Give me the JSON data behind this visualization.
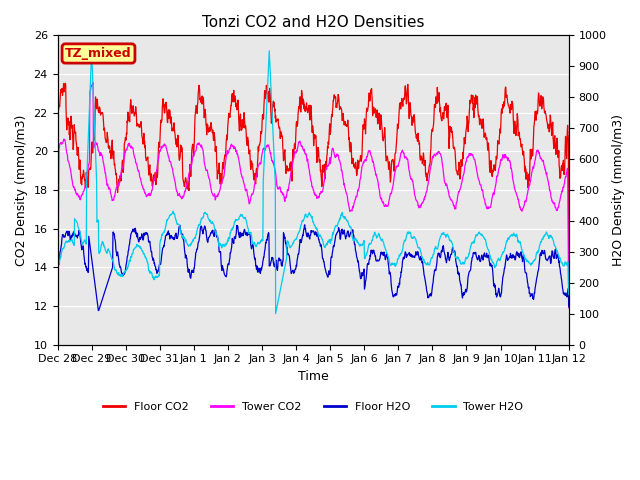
{
  "title": "Tonzi CO2 and H2O Densities",
  "xlabel": "Time",
  "ylabel_left": "CO2 Density (mmol/m3)",
  "ylabel_right": "H2O Density (mmol/m3)",
  "ylim_left": [
    10,
    26
  ],
  "ylim_right": [
    0,
    1000
  ],
  "yticks_left": [
    10,
    12,
    14,
    16,
    18,
    20,
    22,
    24,
    26
  ],
  "yticks_right": [
    0,
    100,
    200,
    300,
    400,
    500,
    600,
    700,
    800,
    900,
    1000
  ],
  "xtick_labels": [
    "Dec 28",
    "Dec 29",
    "Dec 30",
    "Dec 31",
    "Jan 1",
    "Jan 2",
    "Jan 3",
    "Jan 4",
    "Jan 5",
    "Jan 6",
    "Jan 7",
    "Jan 8",
    "Jan 9",
    "Jan 10",
    "Jan 11",
    "Jan 12"
  ],
  "annotation_text": "TZ_mixed",
  "annotation_color": "#cc0000",
  "annotation_bg": "#ffff99",
  "colors": {
    "floor_co2": "#ee0000",
    "tower_co2": "#ff00ff",
    "floor_h2o": "#0000cc",
    "tower_h2o": "#00ccee"
  },
  "legend_labels": [
    "Floor CO2",
    "Tower CO2",
    "Floor H2O",
    "Tower H2O"
  ],
  "background_color": "#e8e8e8",
  "plot_bg": "#ffffff",
  "n_days": 15,
  "pts_per_day": 96
}
